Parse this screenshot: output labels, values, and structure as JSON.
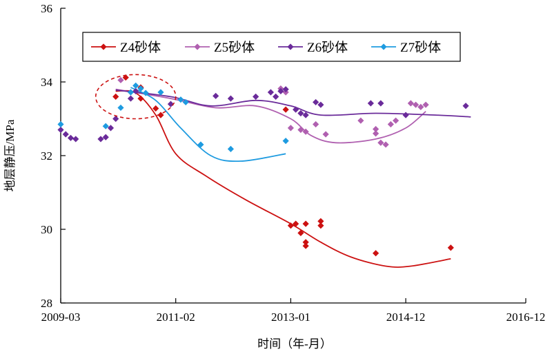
{
  "chart_data": {
    "type": "scatter",
    "xlabel": "时间（年-月）",
    "ylabel": "地层静压/MPa",
    "xlim": [
      "2009-03",
      "2016-12"
    ],
    "ylim": [
      28,
      36
    ],
    "x_ticks": [
      "2009-03",
      "2011-02",
      "2013-01",
      "2014-12",
      "2016-12"
    ],
    "y_ticks": [
      28,
      30,
      32,
      34,
      36
    ],
    "grid": false,
    "legend_position": "top",
    "legend": [
      "Z4砂体",
      "Z5砂体",
      "Z6砂体",
      "Z7砂体"
    ],
    "series": [
      {
        "name": "Z4砂体",
        "color": "#cc1111",
        "marker": "diamond",
        "points": [
          [
            "2010-02",
            33.6
          ],
          [
            "2010-04",
            34.12
          ],
          [
            "2010-07",
            33.85
          ],
          [
            "2010-07",
            33.55
          ],
          [
            "2010-10",
            33.28
          ],
          [
            "2010-11",
            33.1
          ],
          [
            "2012-12",
            33.25
          ],
          [
            "2013-01",
            30.1
          ],
          [
            "2013-02",
            30.15
          ],
          [
            "2013-03",
            29.9
          ],
          [
            "2013-04",
            29.65
          ],
          [
            "2013-04",
            29.55
          ],
          [
            "2013-04",
            30.15
          ],
          [
            "2013-07",
            30.22
          ],
          [
            "2013-07",
            30.1
          ],
          [
            "2014-06",
            29.35
          ],
          [
            "2015-09",
            29.5
          ]
        ],
        "trend": [
          [
            "2010-02",
            33.75
          ],
          [
            "2010-06",
            33.7
          ],
          [
            "2010-10",
            33.1
          ],
          [
            "2011-02",
            32.05
          ],
          [
            "2011-08",
            31.45
          ],
          [
            "2012-04",
            30.8
          ],
          [
            "2013-01",
            30.15
          ],
          [
            "2013-07",
            29.65
          ],
          [
            "2014-01",
            29.25
          ],
          [
            "2014-08",
            29.0
          ],
          [
            "2015-01",
            29.0
          ],
          [
            "2015-09",
            29.2
          ]
        ]
      },
      {
        "name": "Z5砂体",
        "color": "#b060b0",
        "marker": "diamond",
        "points": [
          [
            "2010-03",
            34.05
          ],
          [
            "2012-11",
            33.82
          ],
          [
            "2012-12",
            33.72
          ],
          [
            "2013-01",
            32.75
          ],
          [
            "2013-03",
            32.7
          ],
          [
            "2013-04",
            32.65
          ],
          [
            "2013-06",
            32.85
          ],
          [
            "2013-08",
            32.58
          ],
          [
            "2014-03",
            32.95
          ],
          [
            "2014-06",
            32.72
          ],
          [
            "2014-06",
            32.6
          ],
          [
            "2014-07",
            32.35
          ],
          [
            "2014-08",
            32.3
          ],
          [
            "2014-09",
            32.85
          ],
          [
            "2014-10",
            32.95
          ],
          [
            "2015-01",
            33.42
          ],
          [
            "2015-02",
            33.38
          ],
          [
            "2015-03",
            33.32
          ],
          [
            "2015-04",
            33.38
          ]
        ],
        "trend": [
          [
            "2010-02",
            33.8
          ],
          [
            "2011-01",
            33.55
          ],
          [
            "2011-10",
            33.3
          ],
          [
            "2012-06",
            33.35
          ],
          [
            "2013-01",
            33.0
          ],
          [
            "2013-05",
            32.55
          ],
          [
            "2013-10",
            32.35
          ],
          [
            "2014-06",
            32.45
          ],
          [
            "2014-12",
            32.75
          ],
          [
            "2015-04",
            33.2
          ]
        ]
      },
      {
        "name": "Z6砂体",
        "color": "#6a2b9a",
        "marker": "diamond",
        "points": [
          [
            "2009-03",
            32.7
          ],
          [
            "2009-04",
            32.58
          ],
          [
            "2009-05",
            32.48
          ],
          [
            "2009-06",
            32.45
          ],
          [
            "2009-11",
            32.45
          ],
          [
            "2009-12",
            32.5
          ],
          [
            "2010-01",
            32.75
          ],
          [
            "2010-02",
            33.0
          ],
          [
            "2010-05",
            33.55
          ],
          [
            "2010-06",
            33.75
          ],
          [
            "2011-01",
            33.4
          ],
          [
            "2011-10",
            33.62
          ],
          [
            "2012-01",
            33.55
          ],
          [
            "2012-06",
            33.6
          ],
          [
            "2012-09",
            33.72
          ],
          [
            "2012-10",
            33.6
          ],
          [
            "2012-11",
            33.75
          ],
          [
            "2012-12",
            33.8
          ],
          [
            "2013-02",
            33.25
          ],
          [
            "2013-03",
            33.15
          ],
          [
            "2013-04",
            33.1
          ],
          [
            "2013-06",
            33.45
          ],
          [
            "2013-07",
            33.38
          ],
          [
            "2014-05",
            33.42
          ],
          [
            "2014-07",
            33.42
          ],
          [
            "2014-12",
            33.1
          ],
          [
            "2015-12",
            33.35
          ]
        ],
        "trend": [
          [
            "2010-02",
            33.78
          ],
          [
            "2011-01",
            33.6
          ],
          [
            "2011-09",
            33.35
          ],
          [
            "2012-06",
            33.5
          ],
          [
            "2013-01",
            33.35
          ],
          [
            "2013-07",
            33.1
          ],
          [
            "2014-06",
            33.15
          ],
          [
            "2015-06",
            33.1
          ],
          [
            "2016-01",
            33.05
          ]
        ]
      },
      {
        "name": "Z7砂体",
        "color": "#1e9be0",
        "marker": "diamond",
        "points": [
          [
            "2009-03",
            32.85
          ],
          [
            "2009-12",
            32.8
          ],
          [
            "2010-03",
            33.3
          ],
          [
            "2010-05",
            33.72
          ],
          [
            "2010-06",
            33.9
          ],
          [
            "2010-07",
            33.82
          ],
          [
            "2010-08",
            33.7
          ],
          [
            "2010-11",
            33.72
          ],
          [
            "2011-03",
            33.52
          ],
          [
            "2011-04",
            33.45
          ],
          [
            "2011-07",
            32.3
          ],
          [
            "2012-01",
            32.18
          ],
          [
            "2012-12",
            32.4
          ]
        ],
        "trend": [
          [
            "2010-05",
            33.85
          ],
          [
            "2010-10",
            33.5
          ],
          [
            "2011-03",
            32.75
          ],
          [
            "2011-09",
            32.0
          ],
          [
            "2012-03",
            31.85
          ],
          [
            "2012-12",
            32.05
          ]
        ]
      }
    ],
    "annotations": [
      {
        "type": "dashed-circle",
        "color": "#cc1111",
        "center": [
          "2010-06",
          33.6
        ],
        "radius_x_months": 8,
        "radius_y": 0.6
      }
    ]
  }
}
